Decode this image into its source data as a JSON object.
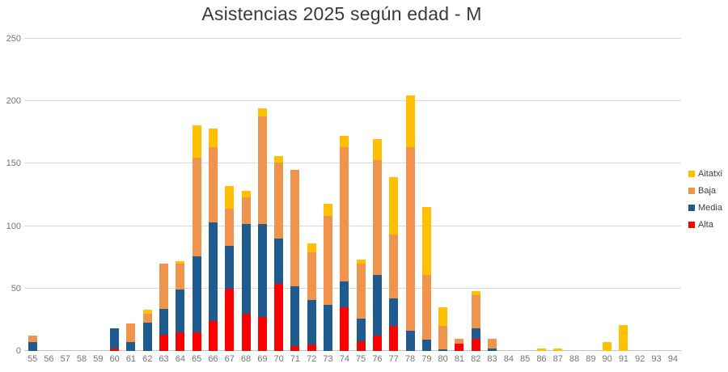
{
  "title": "Asistencias 2025 según edad - M",
  "colors": {
    "alta": "#FF0000",
    "media": "#1F5B8E",
    "baja": "#F0944D",
    "aitatxi": "#FFC000",
    "gridline": "#d9d9d9",
    "axis_text": "#757575",
    "title_text": "#3a3a3a"
  },
  "chart_data": {
    "type": "bar",
    "stacked": true,
    "title": "Asistencias 2025 según edad - M",
    "xlabel": "",
    "ylabel": "",
    "categories": [
      55,
      56,
      57,
      58,
      59,
      60,
      61,
      62,
      63,
      64,
      65,
      66,
      67,
      68,
      69,
      70,
      71,
      72,
      73,
      74,
      75,
      76,
      77,
      78,
      79,
      80,
      81,
      82,
      83,
      84,
      85,
      86,
      87,
      88,
      89,
      90,
      91,
      92,
      93,
      94
    ],
    "series": [
      {
        "name": "Alta",
        "color": "#FF0000",
        "values": [
          0,
          0,
          0,
          0,
          0,
          2,
          0,
          0,
          13,
          15,
          15,
          24,
          50,
          30,
          27,
          54,
          4,
          5,
          0,
          35,
          8,
          12,
          20,
          0,
          0,
          0,
          6,
          10,
          0,
          0,
          0,
          0,
          0,
          0,
          0,
          0,
          0,
          0,
          0,
          0
        ]
      },
      {
        "name": "Media",
        "color": "#1F5B8E",
        "values": [
          7,
          0,
          0,
          0,
          0,
          16,
          7,
          23,
          21,
          34,
          61,
          79,
          34,
          72,
          75,
          36,
          48,
          36,
          37,
          21,
          18,
          49,
          22,
          16,
          9,
          1,
          0,
          8,
          2,
          0,
          0,
          0,
          0,
          0,
          0,
          0,
          0,
          0,
          0,
          0
        ]
      },
      {
        "name": "Baja",
        "color": "#F0944D",
        "values": [
          5,
          0,
          0,
          0,
          0,
          0,
          15,
          7,
          36,
          21,
          79,
          60,
          30,
          21,
          86,
          61,
          93,
          38,
          71,
          107,
          44,
          92,
          51,
          147,
          52,
          19,
          4,
          27,
          8,
          0,
          0,
          0,
          0,
          0,
          0,
          0,
          0,
          0,
          0,
          0
        ]
      },
      {
        "name": "Aitatxi",
        "color": "#FFC000",
        "values": [
          0,
          0,
          0,
          0,
          0,
          0,
          0,
          3,
          0,
          2,
          26,
          15,
          18,
          5,
          6,
          5,
          0,
          7,
          10,
          9,
          3,
          17,
          46,
          42,
          54,
          15,
          0,
          3,
          0,
          0,
          0,
          2,
          2,
          0,
          0,
          7,
          21,
          0,
          0,
          0
        ]
      }
    ],
    "legend": [
      "Aitatxi",
      "Baja",
      "Media",
      "Alta"
    ],
    "legend_position": "right",
    "ylim": [
      0,
      250
    ],
    "yticks": [
      0,
      50,
      100,
      150,
      200,
      250
    ],
    "grid": true
  }
}
